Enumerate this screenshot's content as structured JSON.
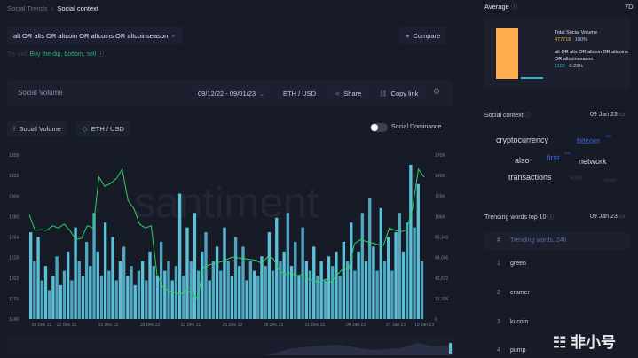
{
  "breadcrumb": {
    "parent": "Social Trends",
    "current": "Social context"
  },
  "search": {
    "query": "alt OR alts OR altcoin OR altcoins OR altcoinseason",
    "compare_label": "Compare"
  },
  "try_out": {
    "label": "Try out:",
    "suggestions": "Buy the dip, bottom, sell"
  },
  "toolbar": {
    "title": "Social Volume",
    "date_range": "09/12/22 - 09/01/23",
    "pair": "ETH / USD",
    "share": "Share",
    "copy_link": "Copy link"
  },
  "legend": {
    "social_volume": "Social Volume",
    "eth_usd": "ETH / USD",
    "social_dominance": "Social Dominance",
    "watermark": "santiment"
  },
  "chart_data": {
    "type": "bar+line",
    "x_ticks": [
      "09 Dec 22",
      "12 Dec 22",
      "15 Dec 22",
      "18 Dec 22",
      "22 Dec 22",
      "25 Dec 22",
      "28 Dec 22",
      "31 Dec 22",
      "04 Jan 23",
      "07 Jan 23",
      "10 Jan 23"
    ],
    "left_axis": {
      "label": "ETH / USD",
      "ticks": [
        "1358",
        "1332",
        "1306",
        "1280",
        "1254",
        "1228",
        "1202",
        "1175",
        "1149"
      ],
      "range": [
        1149,
        1358
      ]
    },
    "right_axis": {
      "label": "Social Volume",
      "ticks": [
        "170K",
        "149K",
        "128K",
        "106K",
        "85,340",
        "64,005",
        "42,672",
        "21,336",
        "0"
      ],
      "range": [
        0,
        170680
      ]
    },
    "series": [
      {
        "name": "Social Volume",
        "color": "#5bc0d8",
        "values_k": [
          90,
          60,
          85,
          40,
          55,
          30,
          45,
          65,
          35,
          50,
          70,
          40,
          95,
          60,
          45,
          80,
          55,
          110,
          70,
          45,
          100,
          50,
          85,
          40,
          60,
          75,
          45,
          55,
          35,
          50,
          60,
          40,
          70,
          55,
          45,
          80,
          50,
          60,
          40,
          55,
          130,
          45,
          95,
          60,
          110,
          50,
          70,
          90,
          40,
          60,
          75,
          50,
          95,
          60,
          45,
          85,
          55,
          75,
          40,
          60,
          50,
          45,
          65,
          55,
          90,
          50,
          105,
          60,
          70,
          110,
          55,
          80,
          45,
          95,
          60,
          50,
          75,
          45,
          60,
          40,
          65,
          55,
          70,
          45,
          80,
          60,
          100,
          50,
          70,
          110,
          60,
          125,
          75,
          50,
          115,
          60,
          85,
          50,
          90,
          110,
          70,
          100,
          160,
          95,
          140,
          60
        ],
        "fill_color": "#5bc0d8"
      },
      {
        "name": "ETH / USD",
        "color": "#2fd15a",
        "values": [
          1282,
          1262,
          1263,
          1262,
          1268,
          1265,
          1270,
          1262,
          1250,
          1252,
          1268,
          1265,
          1330,
          1318,
          1322,
          1328,
          1340,
          1300,
          1290,
          1270,
          1265,
          1268,
          1205,
          1190,
          1185,
          1183,
          1180,
          1186,
          1182,
          1175,
          1215,
          1218,
          1220,
          1222,
          1225,
          1228,
          1227,
          1226,
          1225,
          1224,
          1220,
          1228,
          1226,
          1212,
          1205,
          1208,
          1204,
          1206,
          1200,
          1198,
          1196,
          1200,
          1196,
          1205,
          1213,
          1212,
          1245,
          1250,
          1248,
          1246,
          1244,
          1243,
          1265,
          1262,
          1260,
          1263,
          1290,
          1340,
          1330
        ]
      }
    ]
  },
  "sidebar": {
    "average": {
      "title": "Average",
      "period": "7D",
      "total_label": "Total Social Volume",
      "total_value": "477718",
      "total_pct": "100%",
      "query": "alt OR alts OR altcoin OR altcoins OR altcoinseason",
      "query_value": "1102",
      "query_pct": "0.23%",
      "total_share": 1.0,
      "query_share": 0.0023,
      "total_color": "#ffad4d",
      "query_color": "#37b2c8"
    },
    "social_context": {
      "title": "Social context",
      "date": "09 Jan 23",
      "words": [
        {
          "text": "cryptocurrency",
          "badge": ""
        },
        {
          "text": "bitcoin",
          "badge": "100"
        },
        {
          "text": "also",
          "badge": ""
        },
        {
          "text": "first",
          "badge": "100"
        },
        {
          "text": "network",
          "badge": ""
        },
        {
          "text": "transactions",
          "badge": ""
        },
        {
          "text": "scrap",
          "badge": ""
        },
        {
          "text": "even",
          "badge": ""
        }
      ]
    },
    "trending": {
      "title": "Trending words top 10",
      "date": "09 Jan 23",
      "col_num": "#",
      "col_word": "Trending words, 24h",
      "rows": [
        {
          "n": "1",
          "word": "green"
        },
        {
          "n": "2",
          "word": "cramer"
        },
        {
          "n": "3",
          "word": "kucoin"
        },
        {
          "n": "4",
          "word": "pump"
        }
      ]
    }
  },
  "watermark_logo": "非小号"
}
